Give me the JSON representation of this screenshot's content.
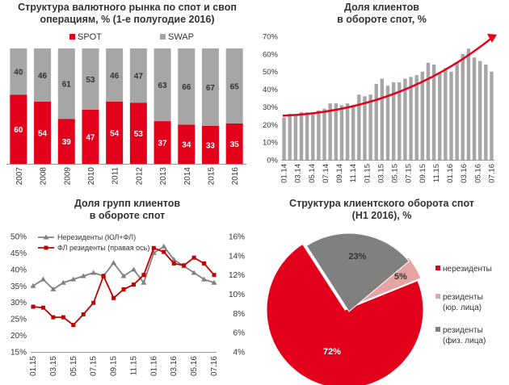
{
  "colors": {
    "red": "#e3001b",
    "dark_red": "#c00000",
    "gray": "#a6a6a6",
    "light_gray": "#c9c9c9",
    "dark_gray": "#808080",
    "pink": "#e6a3a3",
    "axis_text": "#333333"
  },
  "chart_data": [
    {
      "type": "bar",
      "stacked": true,
      "title_line1": "Структура валютного рынка по спот и своп",
      "title_line2": "операциям, % (1-е полугодие 2016)",
      "categories": [
        "2007",
        "2008",
        "2009",
        "2010",
        "2011",
        "2012",
        "2013",
        "2014",
        "2015",
        "2016"
      ],
      "series": [
        {
          "name": "SPOT",
          "values": [
            60,
            54,
            39,
            47,
            54,
            53,
            37,
            34,
            33,
            35
          ]
        },
        {
          "name": "SWAP",
          "values": [
            40,
            46,
            61,
            53,
            46,
            47,
            63,
            66,
            67,
            65
          ]
        }
      ],
      "ylim": [
        0,
        100
      ]
    },
    {
      "type": "bar",
      "title_line1": "Доля клиентов",
      "title_line2": "в обороте спот, %",
      "tick_labels": [
        "01.14",
        "03.14",
        "05.14",
        "07.14",
        "09.14",
        "11.14",
        "01.15",
        "03.15",
        "05.15",
        "07.15",
        "09.15",
        "11.15",
        "01.16",
        "03.16",
        "05.16",
        "07.16"
      ],
      "y_ticks": [
        "0%",
        "10%",
        "20%",
        "30%",
        "40%",
        "50%",
        "60%",
        "70%"
      ],
      "values": [
        24,
        26,
        25,
        27,
        27,
        26,
        28,
        29,
        32,
        32,
        31,
        32,
        31,
        37,
        36,
        37,
        43,
        46,
        42,
        44,
        44,
        46,
        47,
        48,
        50,
        55,
        54,
        49,
        52,
        50,
        55,
        60,
        63,
        58,
        56,
        54,
        50
      ],
      "trend": {
        "start": 25,
        "end": 71,
        "color": "#e3001b"
      },
      "ylim": [
        0,
        70
      ]
    },
    {
      "type": "line",
      "title_line1": "Доля групп клиентов",
      "title_line2": "в обороте спот",
      "tick_labels": [
        "01.15",
        "03.15",
        "05.15",
        "07.15",
        "09.15",
        "11.15",
        "01.16",
        "03.16",
        "05.16",
        "07.16"
      ],
      "y_left_ticks": [
        "15%",
        "20%",
        "25%",
        "30%",
        "35%",
        "40%",
        "45%",
        "50%"
      ],
      "y_right_ticks": [
        "4%",
        "6%",
        "8%",
        "10%",
        "12%",
        "14%",
        "16%"
      ],
      "series": [
        {
          "name": "Нерезиденты (ЮЛ+ФЛ)",
          "axis": "left",
          "values": [
            35,
            37,
            34,
            36,
            37,
            38,
            39,
            38,
            42,
            38,
            40,
            36,
            45,
            47,
            43,
            41,
            39,
            37,
            36
          ]
        },
        {
          "name": "ФЛ резиденты (правая ось)",
          "axis": "right",
          "values": [
            8.7,
            8.6,
            7.6,
            7.6,
            6.8,
            7.9,
            9.1,
            11.9,
            9.6,
            10.5,
            11.0,
            12.0,
            14.8,
            14.4,
            13.2,
            13.0,
            13.8,
            13.2,
            12.0
          ]
        }
      ],
      "ylim_left": [
        15,
        50
      ],
      "ylim_right": [
        4,
        16
      ]
    },
    {
      "type": "pie",
      "title_line1": "Структура клиентского оборота спот",
      "title_line2": "(H1 2016), %",
      "slices": [
        {
          "name": "нерезиденты",
          "name_line2": "",
          "value": 72,
          "label": "72%"
        },
        {
          "name": "резиденты",
          "name_line2": "(юр. лица)",
          "value": 5,
          "label": "5%"
        },
        {
          "name": "резиденты",
          "name_line2": "(физ. лица)",
          "value": 23,
          "label": "23%"
        }
      ]
    }
  ]
}
